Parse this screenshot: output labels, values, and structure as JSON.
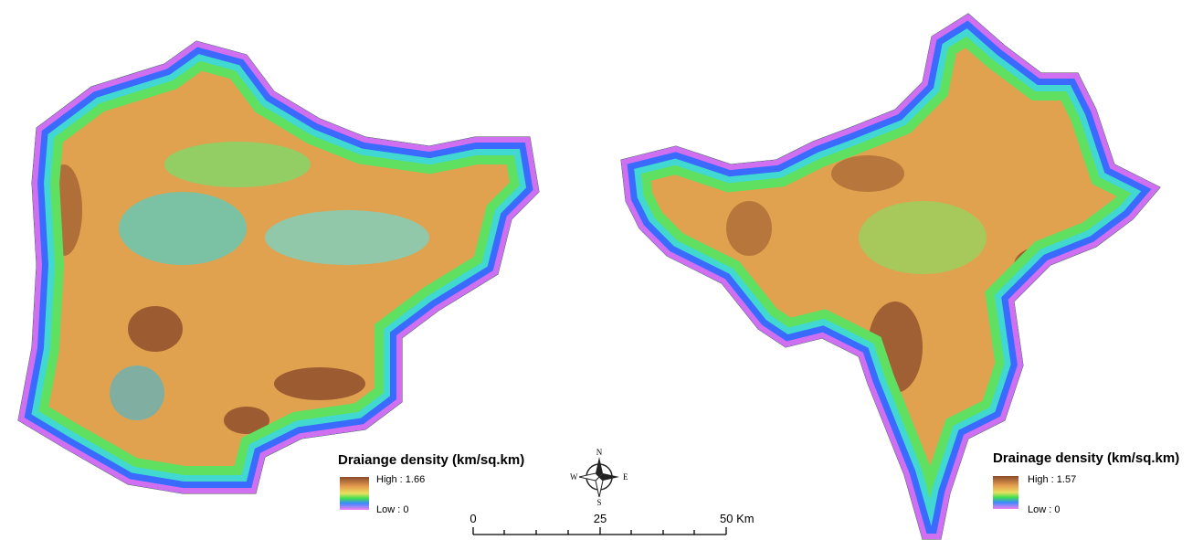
{
  "maps": [
    {
      "legend_title": "Draiange density (km/sq.km)",
      "high": "High : 1.66",
      "low": "Low : 0"
    },
    {
      "legend_title": "Drainage density (km/sq.km)",
      "high": "High : 1.57",
      "low": "Low : 0"
    }
  ],
  "compass": {
    "n": "N",
    "e": "E",
    "s": "S",
    "w": "W"
  },
  "scale_bar": {
    "labels": [
      "0",
      "25",
      "50 Km"
    ]
  }
}
